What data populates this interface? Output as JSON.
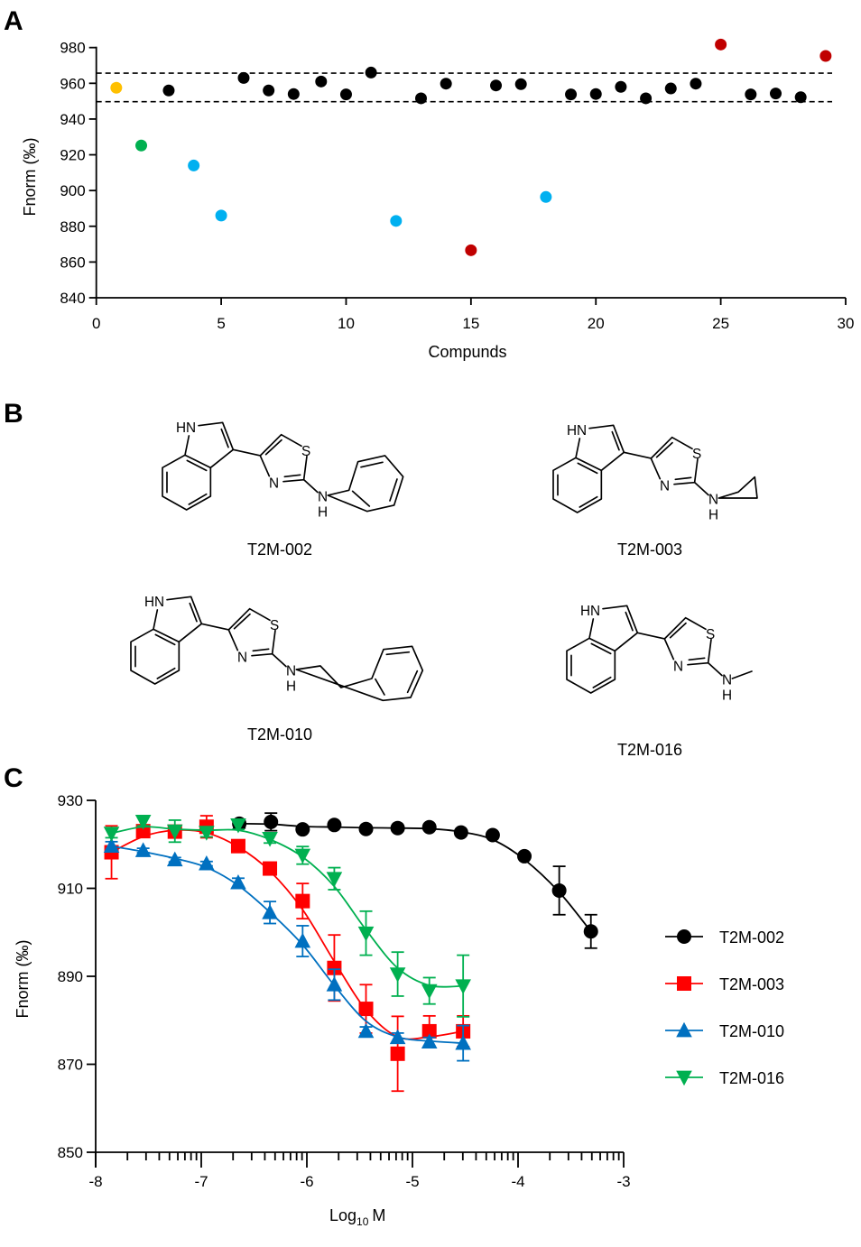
{
  "panel_labels": {
    "a": "A",
    "b": "B",
    "c": "C"
  },
  "chart_data": [
    {
      "type": "scatter",
      "panel": "A",
      "xlabel": "Compunds",
      "ylabel": "Fnorm (‰)",
      "xlim": [
        0,
        30
      ],
      "ylim": [
        840,
        980
      ],
      "xticks": [
        0,
        5,
        10,
        15,
        20,
        25,
        30
      ],
      "yticks": [
        840,
        860,
        880,
        900,
        920,
        940,
        960,
        980
      ],
      "grid": false,
      "reference_lines": [
        965.7,
        949.7
      ],
      "reference_line_style": "dashed",
      "colors": {
        "yellow": "#ffc000",
        "green": "#00b050",
        "blue": "#00b0f0",
        "red": "#c00000",
        "black": "#000000"
      },
      "points": [
        {
          "x": 0.8,
          "y": 957.5,
          "color": "yellow"
        },
        {
          "x": 1.8,
          "y": 925.2,
          "color": "green"
        },
        {
          "x": 2.9,
          "y": 956.0,
          "color": "black"
        },
        {
          "x": 3.9,
          "y": 914.0,
          "color": "blue"
        },
        {
          "x": 5.0,
          "y": 886.0,
          "color": "blue"
        },
        {
          "x": 5.9,
          "y": 963.0,
          "color": "black"
        },
        {
          "x": 6.9,
          "y": 956.0,
          "color": "black"
        },
        {
          "x": 7.9,
          "y": 954.0,
          "color": "black"
        },
        {
          "x": 9.0,
          "y": 961.0,
          "color": "black"
        },
        {
          "x": 10.0,
          "y": 953.8,
          "color": "black"
        },
        {
          "x": 11.0,
          "y": 966.0,
          "color": "black"
        },
        {
          "x": 12.0,
          "y": 883.0,
          "color": "blue"
        },
        {
          "x": 13.0,
          "y": 951.6,
          "color": "black"
        },
        {
          "x": 14.0,
          "y": 959.8,
          "color": "black"
        },
        {
          "x": 15.0,
          "y": 866.6,
          "color": "red"
        },
        {
          "x": 16.0,
          "y": 958.8,
          "color": "black"
        },
        {
          "x": 17.0,
          "y": 959.5,
          "color": "black"
        },
        {
          "x": 18.0,
          "y": 896.4,
          "color": "blue"
        },
        {
          "x": 19.0,
          "y": 953.8,
          "color": "black"
        },
        {
          "x": 20.0,
          "y": 954.0,
          "color": "black"
        },
        {
          "x": 21.0,
          "y": 958.0,
          "color": "black"
        },
        {
          "x": 22.0,
          "y": 951.6,
          "color": "black"
        },
        {
          "x": 23.0,
          "y": 957.1,
          "color": "black"
        },
        {
          "x": 24.0,
          "y": 959.8,
          "color": "black"
        },
        {
          "x": 25.0,
          "y": 981.7,
          "color": "red"
        },
        {
          "x": 26.2,
          "y": 953.8,
          "color": "black"
        },
        {
          "x": 27.2,
          "y": 954.3,
          "color": "black"
        },
        {
          "x": 28.2,
          "y": 952.2,
          "color": "black"
        },
        {
          "x": 29.2,
          "y": 975.3,
          "color": "red"
        }
      ]
    },
    {
      "type": "line",
      "panel": "C",
      "xlabel": "Log",
      "xlabel_sub": "10",
      "xlabel_unit": "M",
      "ylabel": "Fnorm (‰)",
      "xlim": [
        -8,
        -3
      ],
      "ylim": [
        850,
        930
      ],
      "xticks": [
        -8,
        -7,
        -6,
        -5,
        -4,
        -3
      ],
      "yticks": [
        850,
        870,
        890,
        910,
        930
      ],
      "x_minor_ticks": "log",
      "grid": false,
      "legend_position": "right",
      "series": [
        {
          "name": "T2M-002",
          "color": "#000000",
          "marker": "circle",
          "x": [
            -6.64,
            -6.34,
            -6.04,
            -5.74,
            -5.44,
            -5.14,
            -4.84,
            -4.54,
            -4.24,
            -3.94,
            -3.61,
            -3.31
          ],
          "y": [
            924.7,
            925.1,
            923.4,
            924.4,
            923.5,
            923.7,
            923.9,
            922.7,
            922.1,
            917.3,
            909.5,
            900.2
          ],
          "err": [
            1,
            2,
            0.5,
            0.5,
            0.5,
            0.5,
            0.5,
            0.5,
            0.5,
            0.5,
            5.5,
            3.8
          ]
        },
        {
          "name": "T2M-003",
          "color": "#ff0000",
          "marker": "square",
          "x": [
            -7.85,
            -7.55,
            -7.25,
            -6.95,
            -6.65,
            -6.35,
            -6.04,
            -5.74,
            -5.44,
            -5.14,
            -4.84,
            -4.52
          ],
          "y": [
            918.2,
            923.0,
            922.9,
            924.0,
            919.6,
            914.5,
            907.1,
            891.9,
            882.6,
            872.4,
            877.5,
            877.5
          ],
          "err": [
            6,
            1,
            1,
            2.5,
            1,
            1,
            4,
            7.5,
            5.5,
            8.5,
            3.5,
            3.5
          ]
        },
        {
          "name": "T2M-010",
          "color": "#0070c0",
          "marker": "triangle-up",
          "x": [
            -7.85,
            -7.55,
            -7.25,
            -6.95,
            -6.65,
            -6.35,
            -6.04,
            -5.74,
            -5.44,
            -5.14,
            -4.84,
            -4.52
          ],
          "y": [
            919.6,
            918.6,
            916.5,
            915.6,
            911.3,
            904.5,
            898.0,
            888.1,
            877.5,
            876.1,
            875.1,
            874.8
          ],
          "err": [
            1,
            0.5,
            0.5,
            0.5,
            1,
            2.5,
            3.5,
            3.5,
            1,
            1,
            1,
            4
          ]
        },
        {
          "name": "T2M-016",
          "color": "#00b050",
          "marker": "triangle-down",
          "x": [
            -7.85,
            -7.55,
            -7.25,
            -6.95,
            -6.65,
            -6.35,
            -6.04,
            -5.74,
            -5.44,
            -5.14,
            -4.84,
            -4.52
          ],
          "y": [
            922.5,
            925.2,
            923.0,
            922.7,
            924.4,
            921.3,
            917.5,
            912.2,
            899.8,
            890.5,
            886.7,
            887.8
          ],
          "err": [
            1,
            1,
            2.5,
            1,
            1,
            1,
            2,
            2.5,
            5,
            5,
            3,
            7
          ]
        }
      ]
    }
  ],
  "panel_b": {
    "atoms": {
      "hn": "HN",
      "s": "S",
      "n": "N",
      "amine_n": "N",
      "amine_h": "H"
    },
    "compounds": [
      {
        "name": "T2M-002",
        "substituent": "phenyl"
      },
      {
        "name": "T2M-003",
        "substituent": "cyclopropyl"
      },
      {
        "name": "T2M-010",
        "substituent": "phenethyl"
      },
      {
        "name": "T2M-016",
        "substituent": "methyl"
      }
    ]
  }
}
